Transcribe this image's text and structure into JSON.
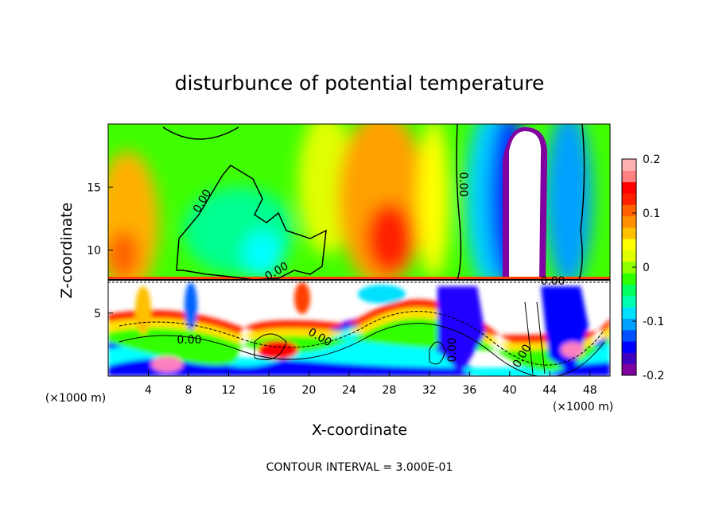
{
  "chart_data": {
    "type": "heatmap",
    "title": "disturbunce of potential temperature",
    "xlabel": "X-coordinate",
    "ylabel": "Z-coordinate",
    "x_unit_label_left": "(×1000 m)",
    "x_unit_label_right": "(×1000 m)",
    "footer": "CONTOUR INTERVAL = 3.000E-01",
    "xlim": [
      0,
      50
    ],
    "ylim": [
      0,
      20
    ],
    "x_ticks": [
      4,
      8,
      12,
      16,
      20,
      24,
      28,
      32,
      36,
      40,
      44,
      48
    ],
    "y_ticks": [
      5,
      10,
      15
    ],
    "colorbar": {
      "ticks": [
        "0.2",
        "0.1",
        "0",
        "-0.1",
        "-0.2"
      ],
      "tick_values": [
        0.2,
        0.1,
        0,
        -0.1,
        -0.2
      ],
      "range": [
        -0.2,
        0.2
      ],
      "colors": [
        "#8000a0",
        "#4000c0",
        "#0000ff",
        "#0050ff",
        "#00a0ff",
        "#00e0ff",
        "#00ffb0",
        "#00ff60",
        "#30ff00",
        "#90ff00",
        "#e0ff00",
        "#ffff00",
        "#ffc000",
        "#ff9000",
        "#ff6000",
        "#ff2000",
        "#ff0000",
        "#ff8080",
        "#ffb0b0"
      ]
    },
    "contour_labels": [
      "0.00",
      "0.00",
      "0.00",
      "0.00",
      "0.00",
      "0.00",
      "0.00",
      "0.00"
    ],
    "upper_layer_features": [
      {
        "x": 10,
        "z": 13,
        "value": -0.02
      },
      {
        "x": 16,
        "z": 11,
        "value": -0.04
      },
      {
        "x": 27,
        "z": 11.5,
        "value": 0.15
      },
      {
        "x": 28,
        "z": 16,
        "value": 0.09
      },
      {
        "x": 2,
        "z": 12,
        "value": 0.08
      },
      {
        "x": 37,
        "z": 14,
        "value": -0.12
      },
      {
        "x": 41,
        "z": 14,
        "value": -0.35
      },
      {
        "x": 45,
        "z": 14,
        "value": -0.1
      }
    ],
    "interface_height": 7.5
  }
}
